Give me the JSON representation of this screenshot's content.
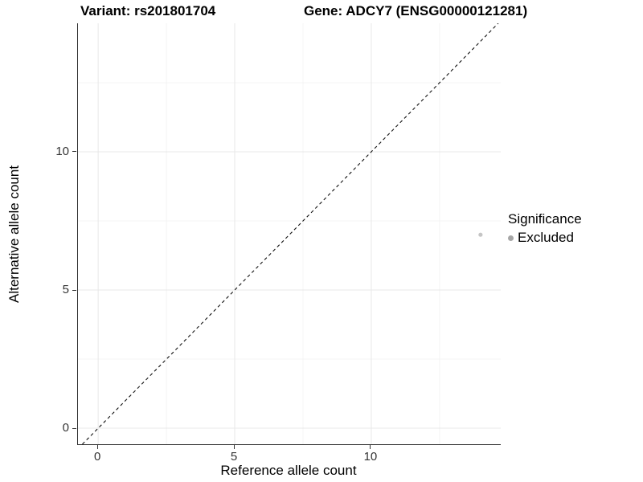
{
  "chart_data": {
    "type": "scatter",
    "title_variant": "Variant: rs201801704",
    "title_gene": "Gene: ADCY7 (ENSG00000121281)",
    "xlabel": "Reference allele count",
    "ylabel": "Alternative allele count",
    "xlim": [
      -0.74,
      14.74
    ],
    "ylim": [
      -0.58,
      14.65
    ],
    "x_ticks": [
      0,
      5,
      10
    ],
    "y_ticks": [
      0,
      5,
      10
    ],
    "x_minor_ticks": [
      2.5,
      7.5,
      12.5
    ],
    "y_minor_ticks": [
      2.5,
      7.5,
      12.5
    ],
    "grid": true,
    "identity_line": {
      "type": "y=x",
      "style": "dashed"
    },
    "points": [
      {
        "x": 14,
        "y": 7,
        "series": "Excluded",
        "color": "#c5c5c5",
        "radius": 2.6
      }
    ],
    "legend": {
      "title": "Significance",
      "position": "right",
      "items": [
        {
          "label": "Excluded",
          "color": "#a6a6a6"
        }
      ]
    },
    "colors": {
      "axis_line": "#303030",
      "tick_label": "#333333",
      "grid_major": "#e8e8e8",
      "grid_minor": "#f4f4f4",
      "identity_line": "#111111",
      "background": "#ffffff"
    }
  }
}
